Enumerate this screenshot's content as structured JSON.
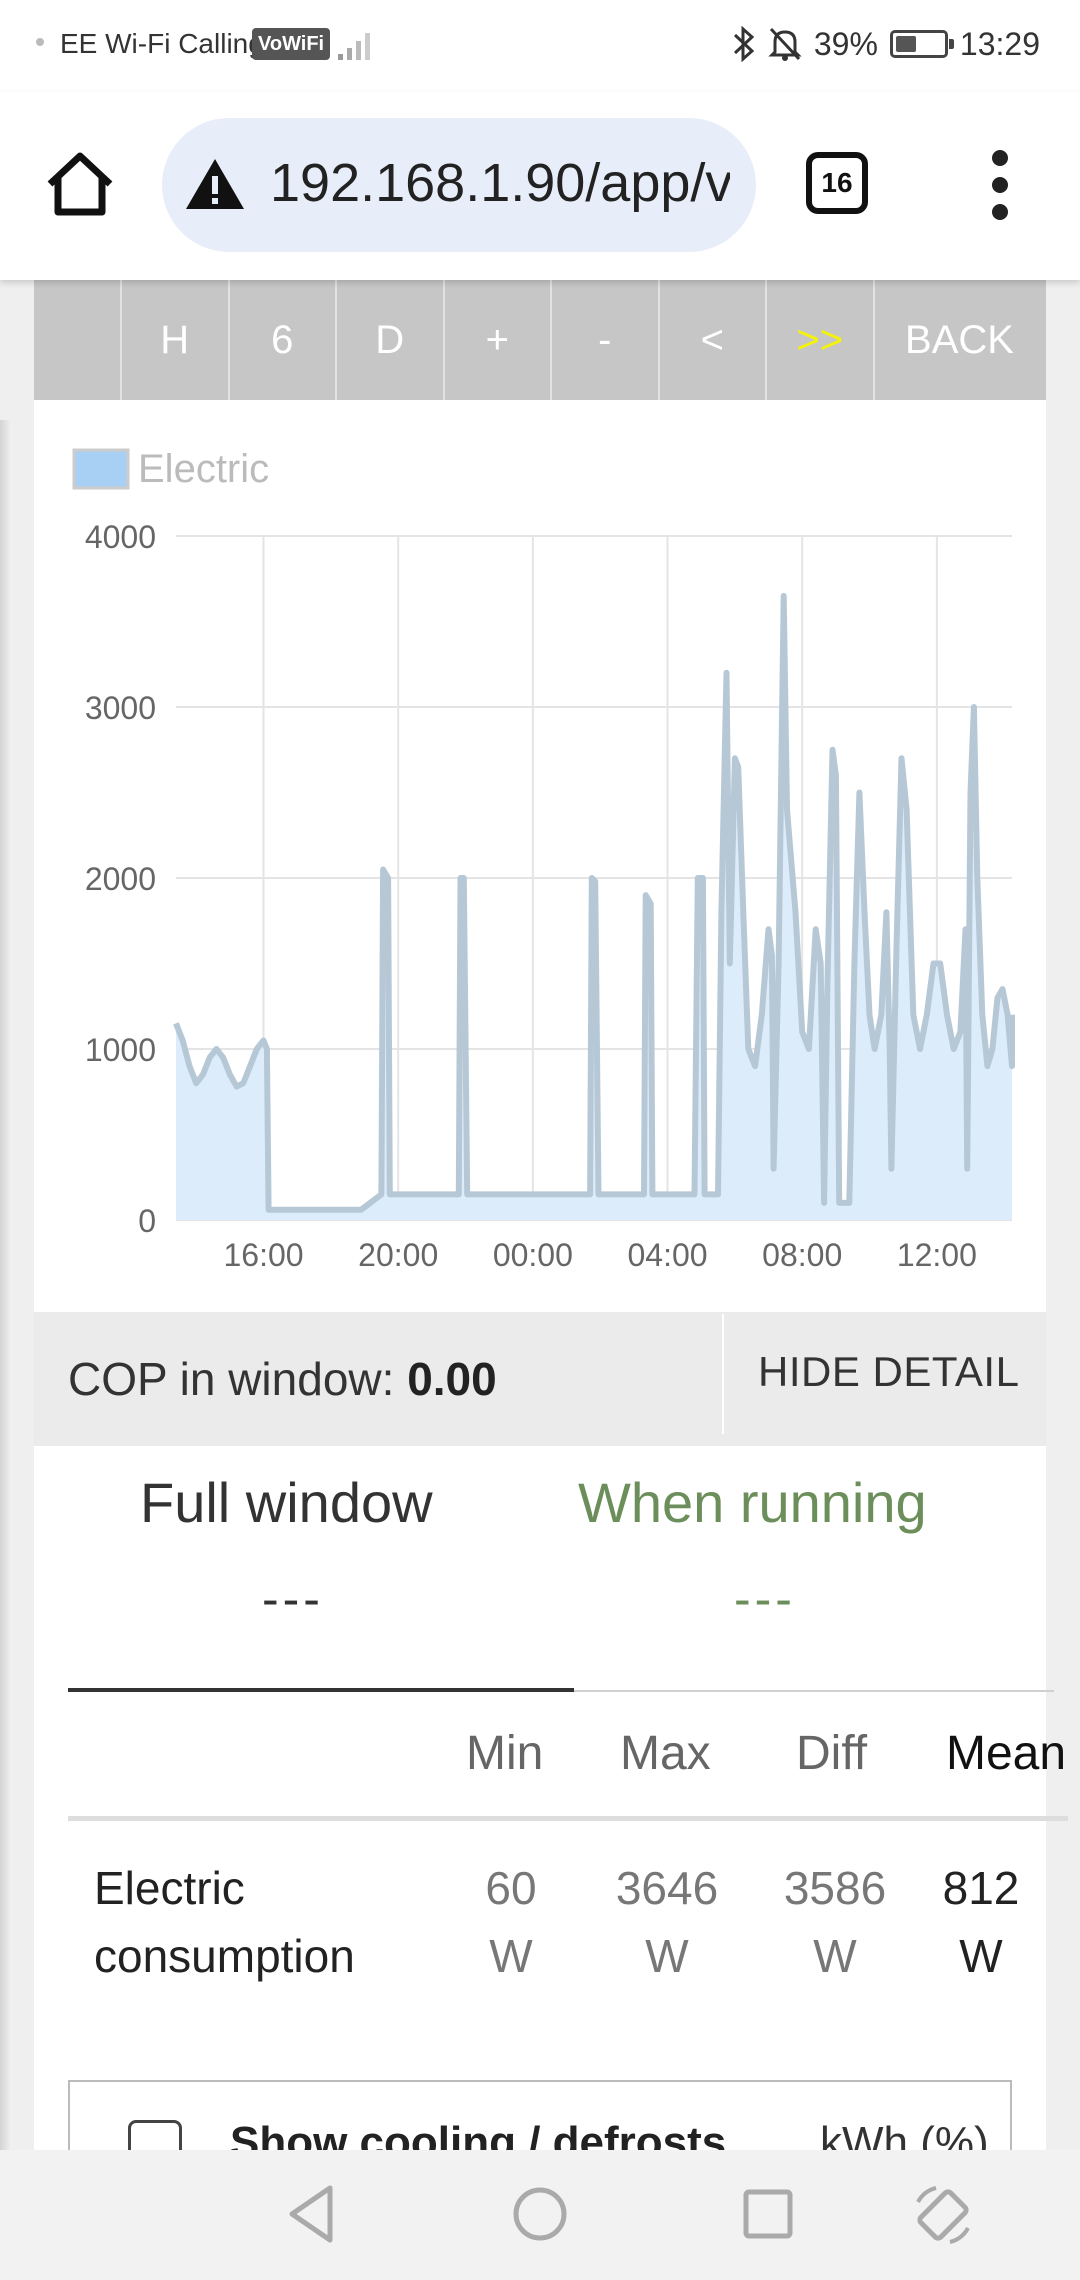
{
  "status_bar": {
    "carrier": "EE Wi-Fi Calling",
    "vowifi": "VoWiFi",
    "battery": "39%",
    "time": "13:29"
  },
  "browser": {
    "url": "192.168.1.90/app/v",
    "tab_count": "16"
  },
  "nav_buttons": [
    "H",
    "6",
    "D",
    "+",
    "-",
    "<",
    ">>",
    "BACK"
  ],
  "chart_data": {
    "type": "area",
    "title": "",
    "legend": [
      "Electric"
    ],
    "xlabel": "",
    "ylabel": "",
    "ylim": [
      0,
      4000
    ],
    "yticks": [
      "0",
      "1000",
      "2000",
      "3000",
      "4000"
    ],
    "xticks": [
      "16:00",
      "20:00",
      "00:00",
      "04:00",
      "08:00",
      "12:00"
    ],
    "x_range_hours": [
      13.4,
      37.4
    ],
    "series": [
      {
        "name": "Electric",
        "color": "#a8d0f5",
        "points": [
          [
            13.4,
            1150
          ],
          [
            13.6,
            1050
          ],
          [
            13.8,
            900
          ],
          [
            14.0,
            800
          ],
          [
            14.2,
            850
          ],
          [
            14.4,
            950
          ],
          [
            14.6,
            1000
          ],
          [
            14.8,
            950
          ],
          [
            15.0,
            850
          ],
          [
            15.2,
            780
          ],
          [
            15.4,
            800
          ],
          [
            15.6,
            900
          ],
          [
            15.8,
            1000
          ],
          [
            16.0,
            1050
          ],
          [
            16.1,
            1000
          ],
          [
            16.15,
            60
          ],
          [
            18.9,
            60
          ],
          [
            19.5,
            150
          ],
          [
            19.55,
            2050
          ],
          [
            19.7,
            2000
          ],
          [
            19.75,
            150
          ],
          [
            21.8,
            150
          ],
          [
            21.85,
            2000
          ],
          [
            21.95,
            2000
          ],
          [
            22.05,
            150
          ],
          [
            25.7,
            150
          ],
          [
            25.75,
            2000
          ],
          [
            25.85,
            1980
          ],
          [
            25.95,
            150
          ],
          [
            27.3,
            150
          ],
          [
            27.35,
            1900
          ],
          [
            27.5,
            1850
          ],
          [
            27.55,
            150
          ],
          [
            28.8,
            150
          ],
          [
            28.9,
            2000
          ],
          [
            29.05,
            2000
          ],
          [
            29.1,
            150
          ],
          [
            29.5,
            150
          ],
          [
            29.6,
            1800
          ],
          [
            29.75,
            3200
          ],
          [
            29.85,
            1500
          ],
          [
            30.0,
            2700
          ],
          [
            30.1,
            2650
          ],
          [
            30.25,
            1800
          ],
          [
            30.4,
            1000
          ],
          [
            30.6,
            900
          ],
          [
            30.8,
            1200
          ],
          [
            31.0,
            1700
          ],
          [
            31.1,
            1550
          ],
          [
            31.15,
            300
          ],
          [
            31.3,
            1500
          ],
          [
            31.45,
            3650
          ],
          [
            31.55,
            2400
          ],
          [
            31.8,
            1800
          ],
          [
            32.0,
            1100
          ],
          [
            32.2,
            1000
          ],
          [
            32.4,
            1700
          ],
          [
            32.55,
            1500
          ],
          [
            32.65,
            100
          ],
          [
            32.75,
            1400
          ],
          [
            32.9,
            2750
          ],
          [
            33.0,
            2600
          ],
          [
            33.1,
            100
          ],
          [
            33.4,
            100
          ],
          [
            33.55,
            1500
          ],
          [
            33.7,
            2500
          ],
          [
            33.85,
            1800
          ],
          [
            34.0,
            1200
          ],
          [
            34.15,
            1000
          ],
          [
            34.35,
            1200
          ],
          [
            34.5,
            1800
          ],
          [
            34.6,
            1000
          ],
          [
            34.65,
            300
          ],
          [
            34.8,
            1600
          ],
          [
            34.95,
            2700
          ],
          [
            35.1,
            2400
          ],
          [
            35.3,
            1200
          ],
          [
            35.5,
            1000
          ],
          [
            35.7,
            1200
          ],
          [
            35.9,
            1500
          ],
          [
            36.1,
            1500
          ],
          [
            36.3,
            1200
          ],
          [
            36.5,
            1000
          ],
          [
            36.7,
            1100
          ],
          [
            36.85,
            1700
          ],
          [
            36.9,
            300
          ],
          [
            37.0,
            2500
          ],
          [
            37.1,
            3000
          ],
          [
            37.2,
            2000
          ],
          [
            37.35,
            1200
          ],
          [
            37.5,
            900
          ],
          [
            37.65,
            1000
          ],
          [
            37.8,
            1300
          ],
          [
            37.95,
            1350
          ],
          [
            38.1,
            1200
          ],
          [
            38.3,
            900
          ],
          [
            38.5,
            900
          ],
          [
            38.7,
            1100
          ],
          [
            38.85,
            1200
          ]
        ]
      }
    ]
  },
  "cop": {
    "label": "COP in window: ",
    "value": "0.00",
    "hide_button": "HIDE DETAIL"
  },
  "window_tabs": {
    "full_label": "Full window",
    "full_value": "---",
    "running_label": "When running",
    "running_value": "---"
  },
  "stats_table": {
    "headers": [
      "Min",
      "Max",
      "Diff",
      "Mean"
    ],
    "row_label_line1": "Electric",
    "row_label_line2": "consumption",
    "values": [
      "60",
      "3646",
      "3586",
      "812"
    ],
    "unit": "W"
  },
  "options": {
    "cooling_label": "Show cooling / defrosts",
    "unit": "kWh (%)"
  }
}
